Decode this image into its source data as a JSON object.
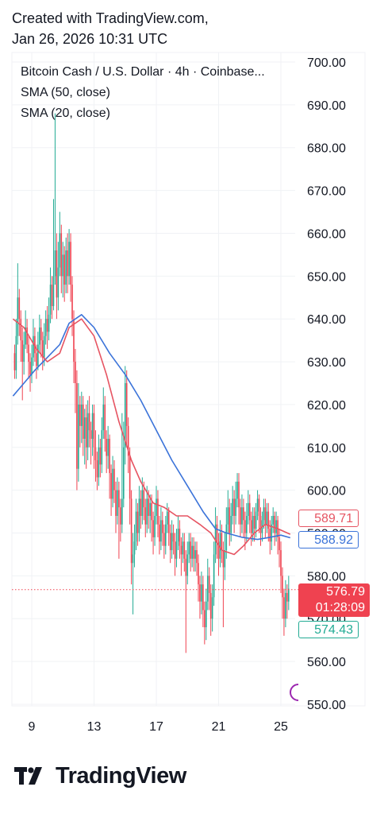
{
  "header": {
    "line1": "Created with TradingView.com,",
    "line2": "Jan 26, 2026 10:31 UTC"
  },
  "legend": {
    "symbol": "Bitcoin Cash / U.S. Dollar · 4h · Coinbase...",
    "sma50": "SMA (50, close)",
    "sma20": "SMA (20, close)"
  },
  "tags": {
    "sma20": "589.71",
    "sma50": "588.92",
    "last": "576.79",
    "countdown": "01:28:09",
    "low": "574.43"
  },
  "colors": {
    "up": "#22ab94",
    "down": "#ef4250",
    "sma20": "#e65462",
    "sma50": "#3b73d9",
    "grid": "#f0f2f5"
  },
  "brand": "TradingView",
  "chart_data": {
    "type": "candlestick",
    "title": "Bitcoin Cash / U.S. Dollar · 4h · Coinbase...",
    "ylim": [
      550,
      700
    ],
    "yticks": [
      "700.00",
      "690.00",
      "680.00",
      "670.00",
      "660.00",
      "650.00",
      "640.00",
      "630.00",
      "620.00",
      "610.00",
      "600.00",
      "590.00",
      "580.00",
      "570.00",
      "560.00",
      "550.00"
    ],
    "xticks": [
      "9",
      "13",
      "17",
      "21",
      "25"
    ],
    "xtick_days": [
      9,
      13,
      17,
      21,
      25
    ],
    "xlim": [
      7.8,
      25.6
    ],
    "last_price": 576.79,
    "grid": true,
    "series": [
      {
        "name": "SMA (50, close)",
        "x": [
          7.8,
          8.5,
          9.2,
          10.0,
          10.8,
          11.4,
          12.2,
          13.0,
          14.0,
          15.0,
          16.0,
          17.0,
          18.0,
          19.0,
          20.0,
          20.8,
          21.5,
          22.5,
          23.5,
          24.3,
          25.0,
          25.6
        ],
        "values": [
          622,
          625,
          628,
          631,
          634,
          639,
          641,
          638,
          632,
          627,
          621,
          614,
          607,
          601,
          595,
          591,
          590,
          589,
          588.5,
          589,
          589.5,
          588.9
        ]
      },
      {
        "name": "SMA (20, close)",
        "x": [
          7.8,
          8.5,
          9.3,
          10.0,
          10.8,
          11.4,
          12.2,
          13.0,
          13.8,
          14.6,
          15.4,
          16.0,
          16.8,
          17.5,
          18.3,
          19.0,
          19.8,
          20.5,
          21.2,
          22.0,
          22.6,
          23.3,
          24.0,
          24.8,
          25.6
        ],
        "values": [
          640,
          638,
          633,
          630,
          632,
          638,
          640,
          636,
          627,
          616,
          607,
          602,
          597,
          596,
          594,
          594,
          592,
          590,
          586,
          585,
          587,
          590,
          592,
          591,
          589.7
        ]
      }
    ],
    "candles": [
      [
        7.9,
        632,
        628,
        634,
        626
      ],
      [
        8.0,
        628,
        636,
        640,
        626
      ],
      [
        8.1,
        636,
        645,
        653,
        634
      ],
      [
        8.2,
        645,
        640,
        647,
        636
      ],
      [
        8.3,
        640,
        635,
        642,
        630
      ],
      [
        8.4,
        635,
        630,
        638,
        621
      ],
      [
        8.5,
        630,
        634,
        637,
        627
      ],
      [
        8.6,
        634,
        638,
        642,
        633
      ],
      [
        8.7,
        638,
        634,
        640,
        632
      ],
      [
        8.8,
        634,
        630,
        636,
        626
      ],
      [
        8.9,
        630,
        627,
        632,
        623
      ],
      [
        9.0,
        627,
        631,
        634,
        625
      ],
      [
        9.1,
        631,
        636,
        640,
        629
      ],
      [
        9.2,
        636,
        632,
        638,
        630
      ],
      [
        9.3,
        632,
        629,
        634,
        626
      ],
      [
        9.4,
        629,
        634,
        637,
        628
      ],
      [
        9.5,
        634,
        638,
        641,
        632
      ],
      [
        9.6,
        638,
        635,
        640,
        631
      ],
      [
        9.7,
        635,
        631,
        637,
        628
      ],
      [
        9.8,
        631,
        636,
        639,
        629
      ],
      [
        9.9,
        636,
        640,
        642,
        634
      ],
      [
        10.0,
        640,
        637,
        643,
        633
      ],
      [
        10.1,
        637,
        641,
        645,
        635
      ],
      [
        10.2,
        641,
        648,
        652,
        639
      ],
      [
        10.3,
        648,
        643,
        650,
        640
      ],
      [
        10.4,
        643,
        650,
        668,
        642
      ],
      [
        10.5,
        650,
        656,
        688,
        648
      ],
      [
        10.6,
        656,
        645,
        660,
        640
      ],
      [
        10.7,
        645,
        652,
        658,
        642
      ],
      [
        10.8,
        652,
        660,
        665,
        650
      ],
      [
        10.9,
        660,
        650,
        662,
        646
      ],
      [
        11.0,
        650,
        655,
        658,
        645
      ],
      [
        11.1,
        655,
        648,
        657,
        644
      ],
      [
        11.2,
        648,
        656,
        659,
        646
      ],
      [
        11.3,
        656,
        650,
        660,
        646
      ],
      [
        11.4,
        650,
        658,
        661,
        648
      ],
      [
        11.5,
        658,
        648,
        660,
        644
      ],
      [
        11.6,
        648,
        640,
        650,
        636
      ],
      [
        11.7,
        640,
        630,
        642,
        625
      ],
      [
        11.8,
        630,
        625,
        633,
        618
      ],
      [
        11.9,
        625,
        605,
        628,
        600
      ],
      [
        12.0,
        605,
        620,
        625,
        602
      ],
      [
        12.1,
        620,
        615,
        622,
        610
      ],
      [
        12.2,
        615,
        620,
        623,
        611
      ],
      [
        12.3,
        620,
        612,
        622,
        608
      ],
      [
        12.4,
        612,
        617,
        619,
        606
      ],
      [
        12.5,
        617,
        610,
        620,
        605
      ],
      [
        12.6,
        610,
        618,
        621,
        607
      ],
      [
        12.7,
        618,
        614,
        622,
        610
      ],
      [
        12.8,
        614,
        612,
        616,
        606
      ],
      [
        12.9,
        612,
        618,
        620,
        608
      ],
      [
        13.0,
        618,
        610,
        620,
        605
      ],
      [
        13.1,
        610,
        607,
        614,
        602
      ],
      [
        13.2,
        607,
        603,
        609,
        600
      ],
      [
        13.3,
        603,
        610,
        613,
        601
      ],
      [
        13.4,
        610,
        606,
        612,
        603
      ],
      [
        13.5,
        606,
        614,
        617,
        604
      ],
      [
        13.6,
        614,
        620,
        624,
        612
      ],
      [
        13.7,
        620,
        612,
        622,
        609
      ],
      [
        13.8,
        612,
        608,
        614,
        604
      ],
      [
        13.9,
        608,
        612,
        615,
        605
      ],
      [
        14.0,
        612,
        604,
        613,
        598
      ],
      [
        14.1,
        604,
        598,
        606,
        594
      ],
      [
        14.2,
        598,
        605,
        608,
        596
      ],
      [
        14.3,
        605,
        600,
        607,
        597
      ],
      [
        14.4,
        600,
        594,
        602,
        590
      ],
      [
        14.5,
        594,
        600,
        603,
        592
      ],
      [
        14.6,
        600,
        596,
        602,
        584
      ],
      [
        14.7,
        596,
        592,
        598,
        588
      ],
      [
        14.8,
        592,
        598,
        618,
        590
      ],
      [
        14.9,
        598,
        610,
        616,
        596
      ],
      [
        15.0,
        610,
        625,
        629,
        606
      ],
      [
        15.1,
        625,
        615,
        628,
        610
      ],
      [
        15.2,
        615,
        608,
        617,
        604
      ],
      [
        15.3,
        608,
        598,
        610,
        592
      ],
      [
        15.4,
        598,
        583,
        600,
        578
      ],
      [
        15.5,
        583,
        585,
        590,
        571
      ],
      [
        15.6,
        585,
        588,
        592,
        582
      ],
      [
        15.7,
        588,
        595,
        598,
        586
      ],
      [
        15.8,
        595,
        590,
        597,
        587
      ],
      [
        15.9,
        590,
        598,
        601,
        588
      ],
      [
        16.0,
        598,
        594,
        600,
        591
      ],
      [
        16.1,
        594,
        600,
        603,
        592
      ],
      [
        16.2,
        600,
        596,
        602,
        593
      ],
      [
        16.3,
        596,
        592,
        598,
        589
      ],
      [
        16.4,
        592,
        598,
        601,
        590
      ],
      [
        16.5,
        598,
        594,
        600,
        591
      ],
      [
        16.6,
        594,
        597,
        599,
        590
      ],
      [
        16.7,
        597,
        593,
        599,
        588
      ],
      [
        16.8,
        593,
        589,
        595,
        585
      ],
      [
        16.9,
        589,
        594,
        597,
        587
      ],
      [
        17.0,
        594,
        598,
        601,
        592
      ],
      [
        17.1,
        598,
        592,
        600,
        589
      ],
      [
        17.2,
        592,
        588,
        594,
        585
      ],
      [
        17.3,
        588,
        593,
        596,
        586
      ],
      [
        17.4,
        593,
        590,
        595,
        587
      ],
      [
        17.5,
        590,
        587,
        592,
        584
      ],
      [
        17.6,
        587,
        592,
        594,
        585
      ],
      [
        17.7,
        592,
        595,
        597,
        590
      ],
      [
        17.8,
        595,
        590,
        596,
        587
      ],
      [
        17.9,
        590,
        586,
        592,
        583
      ],
      [
        18.0,
        586,
        590,
        593,
        584
      ],
      [
        18.1,
        590,
        588,
        592,
        585
      ],
      [
        18.2,
        588,
        584,
        590,
        580
      ],
      [
        18.3,
        584,
        588,
        591,
        582
      ],
      [
        18.4,
        588,
        591,
        594,
        586
      ],
      [
        18.5,
        591,
        587,
        593,
        584
      ],
      [
        18.6,
        587,
        585,
        589,
        580
      ],
      [
        18.7,
        585,
        588,
        590,
        583
      ],
      [
        18.8,
        588,
        584,
        590,
        581
      ],
      [
        18.9,
        584,
        580,
        586,
        562
      ],
      [
        19.0,
        580,
        585,
        588,
        578
      ],
      [
        19.1,
        585,
        588,
        590,
        583
      ],
      [
        19.2,
        588,
        584,
        590,
        581
      ],
      [
        19.3,
        584,
        587,
        589,
        582
      ],
      [
        19.4,
        587,
        584,
        589,
        581
      ],
      [
        19.5,
        584,
        586,
        588,
        581
      ],
      [
        19.6,
        586,
        583,
        588,
        580
      ],
      [
        19.7,
        583,
        578,
        585,
        574
      ],
      [
        19.8,
        578,
        574,
        580,
        570
      ],
      [
        19.9,
        574,
        578,
        581,
        571
      ],
      [
        20.0,
        578,
        572,
        580,
        568
      ],
      [
        20.1,
        572,
        568,
        574,
        564
      ],
      [
        20.2,
        568,
        574,
        577,
        565
      ],
      [
        20.3,
        574,
        580,
        584,
        572
      ],
      [
        20.4,
        580,
        576,
        582,
        572
      ],
      [
        20.5,
        576,
        570,
        578,
        566
      ],
      [
        20.6,
        570,
        575,
        578,
        567
      ],
      [
        20.7,
        575,
        585,
        588,
        573
      ],
      [
        20.8,
        585,
        592,
        596,
        583
      ],
      [
        20.9,
        592,
        588,
        594,
        584
      ],
      [
        21.0,
        588,
        584,
        590,
        580
      ],
      [
        21.1,
        584,
        590,
        593,
        582
      ],
      [
        21.2,
        590,
        586,
        592,
        583
      ],
      [
        21.3,
        586,
        582,
        588,
        568
      ],
      [
        21.4,
        582,
        586,
        590,
        579
      ],
      [
        21.5,
        586,
        592,
        596,
        584
      ],
      [
        21.6,
        592,
        596,
        600,
        590
      ],
      [
        21.7,
        596,
        590,
        598,
        587
      ],
      [
        21.8,
        590,
        594,
        597,
        588
      ],
      [
        21.9,
        594,
        598,
        601,
        592
      ],
      [
        22.0,
        598,
        594,
        600,
        590
      ],
      [
        22.1,
        594,
        598,
        602,
        592
      ],
      [
        22.2,
        598,
        602,
        604,
        596
      ],
      [
        22.3,
        602,
        596,
        604,
        592
      ],
      [
        22.4,
        596,
        592,
        598,
        589
      ],
      [
        22.5,
        592,
        596,
        599,
        590
      ],
      [
        22.6,
        596,
        593,
        598,
        589
      ],
      [
        22.7,
        593,
        590,
        595,
        586
      ],
      [
        22.8,
        590,
        594,
        597,
        588
      ],
      [
        22.9,
        594,
        597,
        600,
        592
      ],
      [
        23.0,
        597,
        593,
        599,
        590
      ],
      [
        23.1,
        593,
        590,
        595,
        587
      ],
      [
        23.2,
        590,
        594,
        596,
        588
      ],
      [
        23.3,
        594,
        591,
        596,
        588
      ],
      [
        23.4,
        591,
        595,
        597,
        589
      ],
      [
        23.5,
        595,
        598,
        600,
        593
      ],
      [
        23.6,
        598,
        594,
        599,
        590
      ],
      [
        23.7,
        594,
        590,
        596,
        587
      ],
      [
        23.8,
        590,
        593,
        595,
        588
      ],
      [
        23.9,
        593,
        596,
        598,
        591
      ],
      [
        24.0,
        596,
        592,
        598,
        589
      ],
      [
        24.1,
        592,
        595,
        597,
        590
      ],
      [
        24.2,
        595,
        591,
        597,
        588
      ],
      [
        24.3,
        591,
        588,
        593,
        585
      ],
      [
        24.4,
        588,
        592,
        594,
        586
      ],
      [
        24.5,
        592,
        594,
        596,
        590
      ],
      [
        24.6,
        594,
        590,
        595,
        587
      ],
      [
        24.7,
        590,
        593,
        595,
        588
      ],
      [
        24.8,
        593,
        589,
        594,
        585
      ],
      [
        24.9,
        589,
        586,
        591,
        582
      ],
      [
        25.0,
        586,
        580,
        588,
        576
      ],
      [
        25.1,
        580,
        575,
        582,
        570
      ],
      [
        25.2,
        575,
        570,
        577,
        566
      ],
      [
        25.3,
        570,
        576,
        579,
        568
      ],
      [
        25.4,
        576,
        574,
        578,
        570
      ],
      [
        25.5,
        574,
        577,
        580,
        572
      ]
    ]
  }
}
